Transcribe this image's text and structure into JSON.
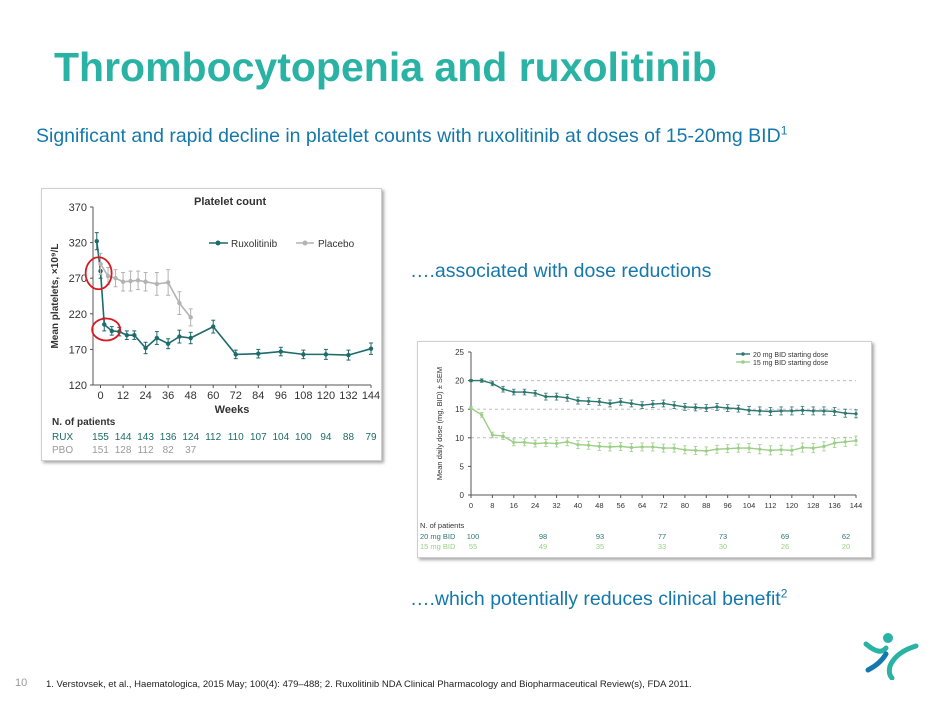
{
  "slide": {
    "title": "Thrombocytopenia and ruxolitinib",
    "subtitle_text": "Significant and rapid decline in platelet counts with ruxolitinib at doses of 15-20mg BID",
    "subtitle_ref": "1",
    "callout_1": "….associated with dose reductions",
    "callout_2_text": "….which potentially reduces clinical benefit",
    "callout_2_ref": "2",
    "slide_number": "10",
    "footnote": "1. Verstovsek, et al., Haematologica, 2015 May; 100(4): 479–488; 2. Ruxolitinib NDA Clinical Pharmacology and Biopharmaceutical Review(s), FDA 2011."
  },
  "colors": {
    "title": "#2ab3a5",
    "text_blue": "#1578ac",
    "rux": "#1d6b6a",
    "placebo": "#b3b3b3",
    "dose20": "#2e7771",
    "dose15": "#9bcf86",
    "highlight": "#d71920"
  },
  "chart_data": [
    {
      "type": "line",
      "title": "Platelet count",
      "xlabel": "Weeks",
      "ylabel": "Mean platelets, ×10⁹/L",
      "ylim": [
        120,
        370
      ],
      "yticks": [
        120,
        170,
        220,
        270,
        320,
        370
      ],
      "xlim": [
        -4,
        144
      ],
      "xticks": [
        0,
        12,
        24,
        36,
        48,
        60,
        72,
        84,
        96,
        108,
        120,
        132,
        144
      ],
      "series": [
        {
          "name": "Ruxolitinib",
          "x": [
            -2,
            0,
            2,
            6,
            10,
            14,
            18,
            24,
            30,
            36,
            42,
            48,
            60,
            72,
            84,
            96,
            108,
            120,
            132,
            144
          ],
          "y": [
            322,
            280,
            205,
            196,
            195,
            190,
            190,
            172,
            186,
            178,
            188,
            186,
            202,
            163,
            164,
            167,
            163,
            163,
            162,
            171
          ],
          "err": [
            12,
            10,
            9,
            6,
            6,
            6,
            6,
            8,
            9,
            7,
            9,
            8,
            9,
            6,
            6,
            6,
            6,
            7,
            7,
            8
          ]
        },
        {
          "name": "Placebo",
          "x": [
            0,
            4,
            8,
            12,
            16,
            20,
            24,
            30,
            36,
            42,
            48
          ],
          "y": [
            290,
            273,
            270,
            265,
            266,
            267,
            265,
            262,
            264,
            235,
            215
          ],
          "err": [
            15,
            12,
            12,
            13,
            14,
            13,
            13,
            16,
            18,
            16,
            12
          ]
        }
      ],
      "patients_header": "N. of patients",
      "patients": [
        {
          "label": "RUX",
          "values": [
            "155",
            "144",
            "143",
            "136",
            "124",
            "112",
            "110",
            "107",
            "104",
            "100",
            "94",
            "88",
            "79"
          ]
        },
        {
          "label": "PBO",
          "values": [
            "151",
            "128",
            "112",
            "82",
            "37"
          ]
        }
      ]
    },
    {
      "type": "line",
      "title": "",
      "xlabel": "",
      "ylabel": "Mean daily dose (mg, BID) ± SEM",
      "ylim": [
        0,
        25
      ],
      "yticks": [
        0,
        5,
        10,
        15,
        20,
        25
      ],
      "xlim": [
        0,
        144
      ],
      "xticks": [
        0,
        8,
        16,
        24,
        32,
        40,
        48,
        56,
        64,
        72,
        80,
        88,
        96,
        104,
        112,
        120,
        128,
        136,
        144
      ],
      "reference_lines": [
        20,
        15,
        10
      ],
      "series": [
        {
          "name": "20 mg BID starting dose",
          "x": [
            0,
            4,
            8,
            12,
            16,
            20,
            24,
            28,
            32,
            36,
            40,
            44,
            48,
            52,
            56,
            60,
            64,
            68,
            72,
            76,
            80,
            84,
            88,
            92,
            96,
            100,
            104,
            108,
            112,
            116,
            120,
            124,
            128,
            132,
            136,
            140,
            144
          ],
          "y": [
            20,
            20,
            19.5,
            18.5,
            18,
            18,
            17.8,
            17.2,
            17.2,
            17,
            16.5,
            16.4,
            16.3,
            16,
            16.3,
            16,
            15.7,
            15.9,
            16,
            15.7,
            15.4,
            15.3,
            15.2,
            15.4,
            15.2,
            15.1,
            14.8,
            14.7,
            14.6,
            14.7,
            14.7,
            14.8,
            14.7,
            14.7,
            14.6,
            14.3,
            14.2
          ],
          "err": [
            0.2,
            0.3,
            0.4,
            0.5,
            0.5,
            0.5,
            0.5,
            0.6,
            0.6,
            0.6,
            0.6,
            0.6,
            0.6,
            0.6,
            0.6,
            0.6,
            0.6,
            0.6,
            0.6,
            0.6,
            0.6,
            0.6,
            0.6,
            0.6,
            0.6,
            0.6,
            0.7,
            0.7,
            0.7,
            0.7,
            0.7,
            0.7,
            0.7,
            0.7,
            0.7,
            0.7,
            0.7
          ]
        },
        {
          "name": "15 mg BID starting dose",
          "x": [
            0,
            4,
            8,
            12,
            16,
            20,
            24,
            28,
            32,
            36,
            40,
            44,
            48,
            52,
            56,
            60,
            64,
            68,
            72,
            76,
            80,
            84,
            88,
            92,
            96,
            100,
            104,
            108,
            112,
            116,
            120,
            124,
            128,
            132,
            136,
            140,
            144
          ],
          "y": [
            15.2,
            14,
            10.5,
            10.3,
            9.2,
            9.2,
            9.0,
            9.1,
            9.0,
            9.3,
            8.8,
            8.7,
            8.5,
            8.4,
            8.5,
            8.3,
            8.4,
            8.4,
            8.2,
            8.2,
            7.9,
            7.8,
            7.7,
            8.0,
            8.1,
            8.2,
            8.2,
            8.0,
            7.8,
            7.9,
            7.8,
            8.3,
            8.2,
            8.5,
            9.1,
            9.3,
            9.5
          ],
          "err": [
            0.3,
            0.4,
            0.5,
            0.6,
            0.6,
            0.6,
            0.6,
            0.6,
            0.6,
            0.7,
            0.7,
            0.7,
            0.7,
            0.7,
            0.7,
            0.7,
            0.7,
            0.7,
            0.7,
            0.7,
            0.7,
            0.7,
            0.7,
            0.7,
            0.7,
            0.7,
            0.8,
            0.8,
            0.8,
            0.8,
            0.8,
            0.8,
            0.8,
            0.8,
            0.8,
            0.8,
            0.8
          ]
        }
      ],
      "patients_header": "N. of patients",
      "patients": [
        {
          "label": "20 mg BID",
          "values": [
            "100",
            "98",
            "93",
            "77",
            "73",
            "69",
            "62"
          ]
        },
        {
          "label": "15 mg BID",
          "values": [
            "55",
            "49",
            "35",
            "33",
            "30",
            "26",
            "20"
          ]
        }
      ]
    }
  ]
}
